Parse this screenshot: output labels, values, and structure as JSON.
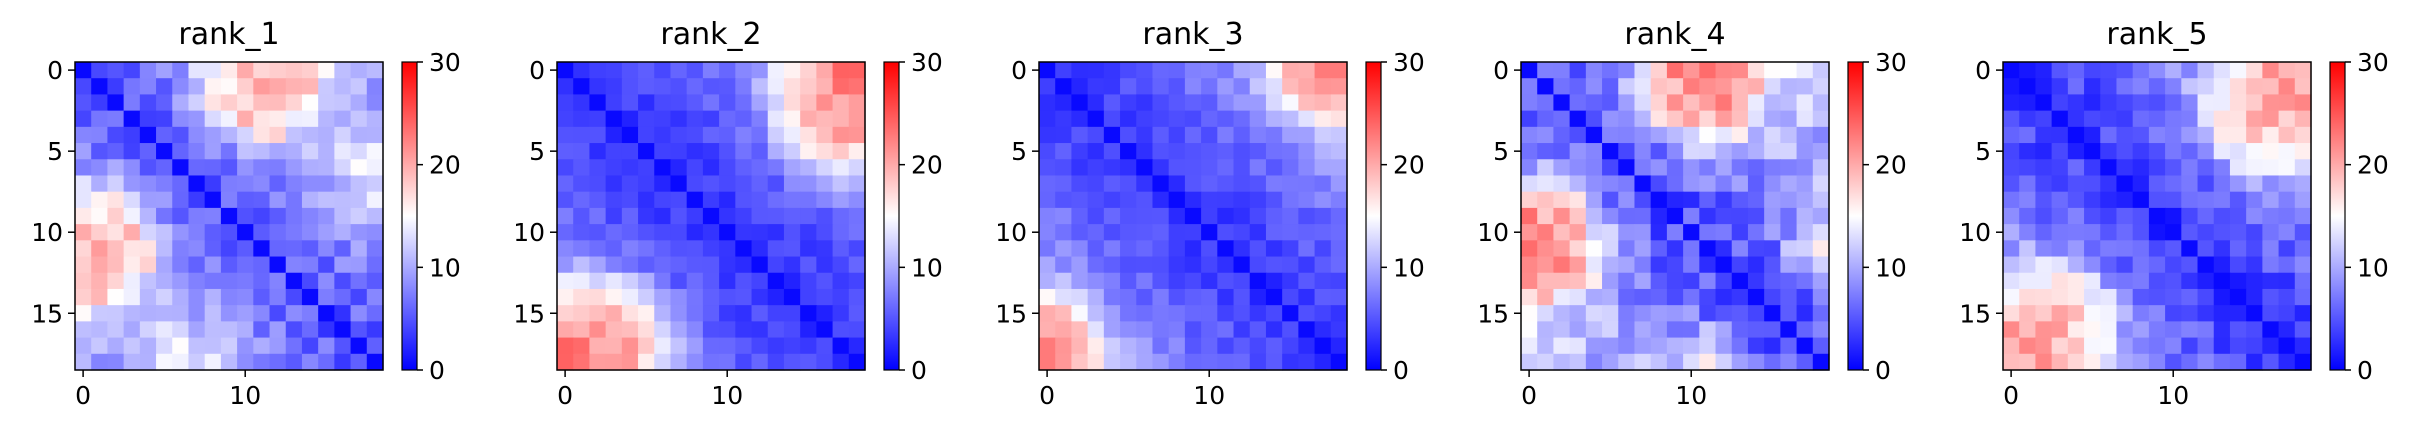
{
  "chart_data": [
    {
      "type": "heatmap",
      "title": "rank_1",
      "xticks": [
        0,
        10
      ],
      "yticks": [
        0,
        5,
        10,
        15
      ],
      "xlim": [
        -0.5,
        18.5
      ],
      "ylim": [
        18.5,
        -0.5
      ],
      "colorbar": {
        "ticks": [
          0,
          10,
          20,
          30
        ],
        "vmin": 0,
        "vmax": 30,
        "colormap": "bwr"
      },
      "size": 19,
      "seed": 11,
      "base_near": 5,
      "base_far": 9,
      "far_slope": 1,
      "noise": 2.5,
      "hotspots": [
        {
          "i": 0,
          "j": 10,
          "v": 18,
          "r": 2.2
        },
        {
          "i": 0,
          "j": 13,
          "v": 19,
          "r": 1.6
        },
        {
          "i": 2,
          "j": 12,
          "v": 15,
          "r": 1.6
        },
        {
          "i": 11,
          "j": 2,
          "v": 19,
          "r": 1.8
        },
        {
          "i": 10,
          "j": 1,
          "v": 16,
          "r": 1.4
        },
        {
          "i": 18,
          "j": 7,
          "v": 14,
          "r": 2.2
        }
      ]
    },
    {
      "type": "heatmap",
      "title": "rank_2",
      "xticks": [
        0,
        10
      ],
      "yticks": [
        0,
        5,
        10,
        15
      ],
      "xlim": [
        -0.5,
        18.5
      ],
      "ylim": [
        18.5,
        -0.5
      ],
      "colorbar": {
        "ticks": [
          0,
          10,
          20,
          30
        ],
        "vmin": 0,
        "vmax": 30,
        "colormap": "bwr"
      },
      "size": 19,
      "seed": 23,
      "base_near": 3,
      "base_far": 6,
      "far_slope": 3,
      "noise": 1.5,
      "hotspots": [
        {
          "i": 18,
          "j": 0,
          "v": 25,
          "r": 2.6
        },
        {
          "i": 17,
          "j": 3,
          "v": 21,
          "r": 2.4
        },
        {
          "i": 16,
          "j": 1,
          "v": 18,
          "r": 1.8
        },
        {
          "i": 0,
          "j": 17,
          "v": 19,
          "r": 1.4
        },
        {
          "i": 0,
          "j": 16,
          "v": 16,
          "r": 1.4
        }
      ]
    },
    {
      "type": "heatmap",
      "title": "rank_3",
      "xticks": [
        0,
        10
      ],
      "yticks": [
        0,
        5,
        10,
        15
      ],
      "xlim": [
        -0.5,
        18.5
      ],
      "ylim": [
        18.5,
        -0.5
      ],
      "colorbar": {
        "ticks": [
          0,
          10,
          20,
          30
        ],
        "vmin": 0,
        "vmax": 30,
        "colormap": "bwr"
      },
      "size": 19,
      "seed": 37,
      "base_near": 3,
      "base_far": 7,
      "far_slope": 3,
      "noise": 1.5,
      "hotspots": [
        {
          "i": 18,
          "j": 0,
          "v": 23,
          "r": 2.2
        },
        {
          "i": 16,
          "j": 0,
          "v": 20,
          "r": 1.6
        },
        {
          "i": 0,
          "j": 18,
          "v": 19,
          "r": 1.4
        },
        {
          "i": 0,
          "j": 17,
          "v": 16,
          "r": 1.2
        }
      ]
    },
    {
      "type": "heatmap",
      "title": "rank_4",
      "xticks": [
        0,
        10
      ],
      "yticks": [
        0,
        5,
        10,
        15
      ],
      "xlim": [
        -0.5,
        18.5
      ],
      "ylim": [
        18.5,
        -0.5
      ],
      "colorbar": {
        "ticks": [
          0,
          10,
          20,
          30
        ],
        "vmin": 0,
        "vmax": 30,
        "colormap": "bwr"
      },
      "size": 19,
      "seed": 41,
      "base_near": 4,
      "base_far": 10,
      "far_slope": 1,
      "noise": 3,
      "hotspots": [
        {
          "i": 0,
          "j": 10,
          "v": 21,
          "r": 2.2
        },
        {
          "i": 1,
          "j": 11,
          "v": 18,
          "r": 2.0
        },
        {
          "i": 11,
          "j": 1,
          "v": 22,
          "r": 2.0
        },
        {
          "i": 12,
          "j": 0,
          "v": 19,
          "r": 1.6
        },
        {
          "i": 11,
          "j": 18,
          "v": 16,
          "r": 1.2
        }
      ]
    },
    {
      "type": "heatmap",
      "title": "rank_5",
      "xticks": [
        0,
        10
      ],
      "yticks": [
        0,
        5,
        10,
        15
      ],
      "xlim": [
        -0.5,
        18.5
      ],
      "ylim": [
        18.5,
        -0.5
      ],
      "colorbar": {
        "ticks": [
          0,
          10,
          20,
          30
        ],
        "vmin": 0,
        "vmax": 30,
        "colormap": "bwr"
      },
      "size": 19,
      "seed": 53,
      "base_near": 3,
      "base_far": 8,
      "far_slope": 2,
      "noise": 2.5,
      "hotspots": [
        {
          "i": 17,
          "j": 1,
          "v": 22,
          "r": 2.6
        },
        {
          "i": 15,
          "j": 3,
          "v": 19,
          "r": 2.0
        },
        {
          "i": 0,
          "j": 18,
          "v": 19,
          "r": 1.6
        },
        {
          "i": 5,
          "j": 18,
          "v": 16,
          "r": 1.2
        }
      ]
    }
  ]
}
